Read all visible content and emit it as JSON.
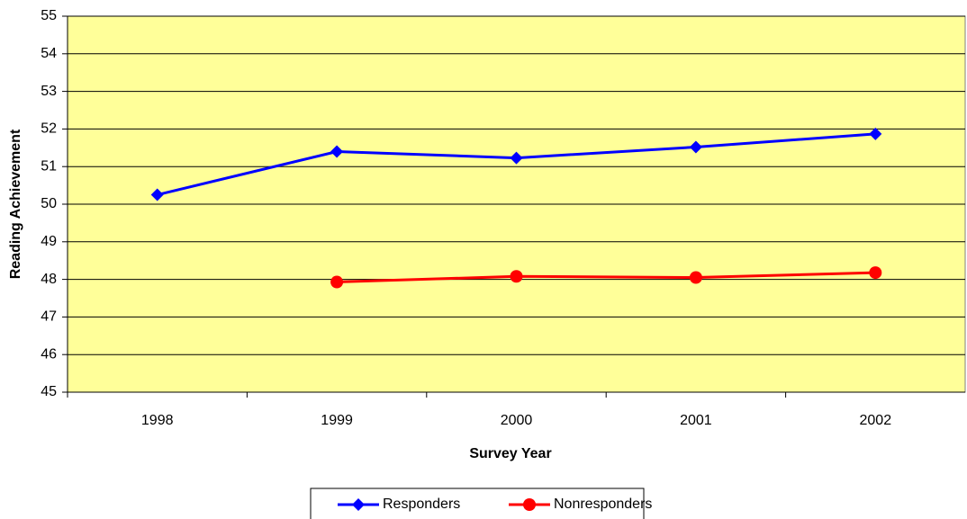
{
  "chart_data": {
    "type": "line",
    "x_label": "Survey Year",
    "y_label": "Reading Achievement",
    "categories": [
      "1998",
      "1999",
      "2000",
      "2001",
      "2002"
    ],
    "series": [
      {
        "name": "Responders",
        "color": "#0000ff",
        "marker": "diamond",
        "values": [
          50.25,
          51.4,
          51.23,
          51.52,
          51.87
        ]
      },
      {
        "name": "Nonresponders",
        "color": "#ff0000",
        "marker": "circle",
        "values": [
          null,
          47.93,
          48.08,
          48.05,
          48.18
        ]
      }
    ],
    "ylim": [
      45,
      55
    ],
    "yticks": [
      45,
      46,
      47,
      48,
      49,
      50,
      51,
      52,
      53,
      54,
      55
    ],
    "grid": true,
    "legend": "bottom",
    "plot_background": "#ffff99"
  }
}
